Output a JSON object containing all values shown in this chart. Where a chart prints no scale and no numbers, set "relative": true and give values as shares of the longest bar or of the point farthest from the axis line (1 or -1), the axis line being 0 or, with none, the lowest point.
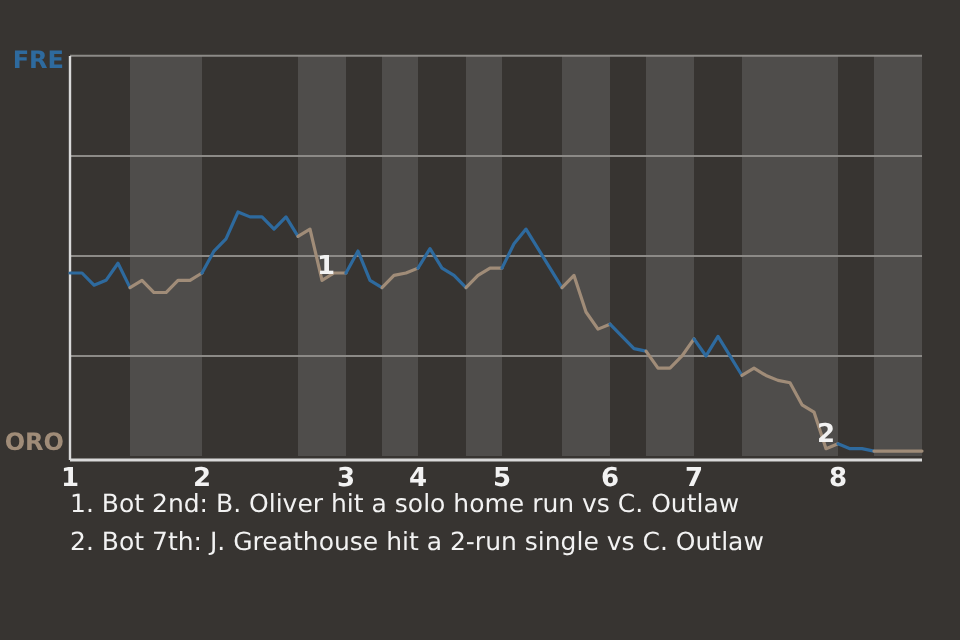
{
  "chart_data": {
    "type": "line",
    "relative": true,
    "ref_lines": [
      {
        "axis": "y",
        "value": 0.41,
        "color": "#8c8a87"
      },
      {
        "axis": "y",
        "value": 0.82,
        "color": "#8c8a87"
      },
      {
        "axis": "y",
        "value": 1.23,
        "color": "#8c8a87"
      },
      {
        "axis": "y",
        "value": 1.64,
        "color": "#8c8a87"
      }
    ],
    "categories": [
      "1",
      null,
      null,
      null,
      null,
      null,
      null,
      null,
      null,
      null,
      null,
      "2",
      null,
      null,
      null,
      null,
      null,
      null,
      null,
      null,
      null,
      null,
      null,
      "3",
      null,
      null,
      null,
      null,
      null,
      "4",
      null,
      null,
      null,
      null,
      null,
      null,
      "5",
      null,
      null,
      null,
      null,
      null,
      null,
      null,
      null,
      "6",
      null,
      null,
      null,
      null,
      null,
      null,
      "7",
      null,
      null,
      null,
      null,
      null,
      null,
      null,
      null,
      null,
      null,
      null,
      "8",
      null,
      null,
      null,
      null,
      null,
      null,
      null
    ],
    "series": [
      {
        "name": "FRE",
        "color": "#2e6a9e",
        "values": [
          0.75,
          0.75,
          0.7,
          0.72,
          0.79,
          0.69,
          null,
          null,
          null,
          null,
          null,
          null,
          null,
          null,
          null,
          null,
          null,
          null,
          null,
          null,
          null,
          null,
          null,
          null,
          null,
          null,
          null,
          null,
          null,
          null,
          null,
          null,
          null,
          null,
          null,
          null,
          null,
          null,
          null,
          null,
          null,
          null,
          null,
          null,
          null,
          null,
          null,
          null,
          null,
          null,
          null,
          null,
          null,
          null,
          null,
          null,
          null,
          null,
          null,
          null,
          null,
          null,
          null,
          null,
          null,
          null,
          null,
          null,
          null,
          null,
          null,
          null
        ]
      },
      {
        "name": "ORO",
        "color": "#a08c78",
        "values": [
          null,
          null,
          null,
          null,
          null,
          0.69,
          0.72,
          0.67,
          0.67,
          0.72,
          0.72,
          0.75,
          null,
          null,
          null,
          null,
          null,
          null,
          null,
          null,
          null,
          null,
          null,
          null,
          null,
          null,
          null,
          null,
          null,
          null,
          null,
          null,
          null,
          null,
          null,
          null,
          null,
          null,
          null,
          null,
          null,
          null,
          null,
          null,
          null,
          null,
          null,
          null,
          null,
          null,
          null,
          null,
          null,
          null,
          null,
          null,
          null,
          null,
          null,
          null,
          null,
          null,
          null,
          null,
          null,
          null,
          null,
          null,
          null,
          null,
          null,
          null
        ]
      },
      {
        "color": "#2e6a9e",
        "values": [
          null,
          null,
          null,
          null,
          null,
          null,
          null,
          null,
          null,
          null,
          null,
          0.75,
          0.84,
          0.89,
          1,
          0.98,
          0.98,
          0.93,
          0.98,
          0.9,
          null,
          null,
          null,
          null,
          null,
          null,
          null,
          null,
          null,
          null,
          null,
          null,
          null,
          null,
          null,
          null,
          null,
          null,
          null,
          null,
          null,
          null,
          null,
          null,
          null,
          null,
          null,
          null,
          null,
          null,
          null,
          null,
          null,
          null,
          null,
          null,
          null,
          null,
          null,
          null,
          null,
          null,
          null,
          null,
          null,
          null,
          null,
          null,
          null,
          null,
          null,
          null
        ]
      },
      {
        "color": "#a08c78",
        "values": [
          null,
          null,
          null,
          null,
          null,
          null,
          null,
          null,
          null,
          null,
          null,
          null,
          null,
          null,
          null,
          null,
          null,
          null,
          null,
          0.9,
          0.93,
          0.72,
          0.75,
          0.75,
          null,
          null,
          null,
          null,
          null,
          null,
          null,
          null,
          null,
          null,
          null,
          null,
          null,
          null,
          null,
          null,
          null,
          null,
          null,
          null,
          null,
          null,
          null,
          null,
          null,
          null,
          null,
          null,
          null,
          null,
          null,
          null,
          null,
          null,
          null,
          null,
          null,
          null,
          null,
          null,
          null,
          null,
          null,
          null,
          null,
          null,
          null,
          null
        ]
      },
      {
        "color": "#2e6a9e",
        "values": [
          null,
          null,
          null,
          null,
          null,
          null,
          null,
          null,
          null,
          null,
          null,
          null,
          null,
          null,
          null,
          null,
          null,
          null,
          null,
          null,
          null,
          null,
          null,
          0.75,
          0.84,
          0.72,
          0.69,
          null,
          null,
          null,
          null,
          null,
          null,
          null,
          null,
          null,
          null,
          null,
          null,
          null,
          null,
          null,
          null,
          null,
          null,
          null,
          null,
          null,
          null,
          null,
          null,
          null,
          null,
          null,
          null,
          null,
          null,
          null,
          null,
          null,
          null,
          null,
          null,
          null,
          null,
          null,
          null,
          null,
          null,
          null,
          null,
          null
        ]
      },
      {
        "color": "#a08c78",
        "values": [
          null,
          null,
          null,
          null,
          null,
          null,
          null,
          null,
          null,
          null,
          null,
          null,
          null,
          null,
          null,
          null,
          null,
          null,
          null,
          null,
          null,
          null,
          null,
          null,
          null,
          null,
          0.69,
          0.74,
          0.75,
          0.77,
          null,
          null,
          null,
          null,
          null,
          null,
          null,
          null,
          null,
          null,
          null,
          null,
          null,
          null,
          null,
          null,
          null,
          null,
          null,
          null,
          null,
          null,
          null,
          null,
          null,
          null,
          null,
          null,
          null,
          null,
          null,
          null,
          null,
          null,
          null,
          null,
          null,
          null,
          null,
          null,
          null,
          null
        ]
      },
      {
        "color": "#2e6a9e",
        "values": [
          null,
          null,
          null,
          null,
          null,
          null,
          null,
          null,
          null,
          null,
          null,
          null,
          null,
          null,
          null,
          null,
          null,
          null,
          null,
          null,
          null,
          null,
          null,
          null,
          null,
          null,
          null,
          null,
          null,
          0.77,
          0.85,
          0.77,
          0.74,
          0.69,
          null,
          null,
          null,
          null,
          null,
          null,
          null,
          null,
          null,
          null,
          null,
          null,
          null,
          null,
          null,
          null,
          null,
          null,
          null,
          null,
          null,
          null,
          null,
          null,
          null,
          null,
          null,
          null,
          null,
          null,
          null,
          null,
          null,
          null,
          null,
          null,
          null,
          null
        ]
      },
      {
        "color": "#a08c78",
        "values": [
          null,
          null,
          null,
          null,
          null,
          null,
          null,
          null,
          null,
          null,
          null,
          null,
          null,
          null,
          null,
          null,
          null,
          null,
          null,
          null,
          null,
          null,
          null,
          null,
          null,
          null,
          null,
          null,
          null,
          null,
          null,
          null,
          null,
          0.69,
          0.74,
          0.77,
          0.77,
          null,
          null,
          null,
          null,
          null,
          null,
          null,
          null,
          null,
          null,
          null,
          null,
          null,
          null,
          null,
          null,
          null,
          null,
          null,
          null,
          null,
          null,
          null,
          null,
          null,
          null,
          null,
          null,
          null,
          null,
          null,
          null,
          null,
          null,
          null
        ]
      },
      {
        "color": "#2e6a9e",
        "values": [
          null,
          null,
          null,
          null,
          null,
          null,
          null,
          null,
          null,
          null,
          null,
          null,
          null,
          null,
          null,
          null,
          null,
          null,
          null,
          null,
          null,
          null,
          null,
          null,
          null,
          null,
          null,
          null,
          null,
          null,
          null,
          null,
          null,
          null,
          null,
          null,
          0.77,
          0.87,
          0.93,
          0.85,
          0.77,
          0.69,
          null,
          null,
          null,
          null,
          null,
          null,
          null,
          null,
          null,
          null,
          null,
          null,
          null,
          null,
          null,
          null,
          null,
          null,
          null,
          null,
          null,
          null,
          null,
          null,
          null,
          null,
          null,
          null,
          null,
          null
        ]
      },
      {
        "color": "#a08c78",
        "values": [
          null,
          null,
          null,
          null,
          null,
          null,
          null,
          null,
          null,
          null,
          null,
          null,
          null,
          null,
          null,
          null,
          null,
          null,
          null,
          null,
          null,
          null,
          null,
          null,
          null,
          null,
          null,
          null,
          null,
          null,
          null,
          null,
          null,
          null,
          null,
          null,
          null,
          null,
          null,
          null,
          null,
          0.69,
          0.74,
          0.59,
          0.52,
          0.54,
          null,
          null,
          null,
          null,
          null,
          null,
          null,
          null,
          null,
          null,
          null,
          null,
          null,
          null,
          null,
          null,
          null,
          null,
          null,
          null,
          null,
          null,
          null,
          null,
          null,
          null
        ]
      },
      {
        "color": "#2e6a9e",
        "values": [
          null,
          null,
          null,
          null,
          null,
          null,
          null,
          null,
          null,
          null,
          null,
          null,
          null,
          null,
          null,
          null,
          null,
          null,
          null,
          null,
          null,
          null,
          null,
          null,
          null,
          null,
          null,
          null,
          null,
          null,
          null,
          null,
          null,
          null,
          null,
          null,
          null,
          null,
          null,
          null,
          null,
          null,
          null,
          null,
          null,
          0.54,
          0.49,
          0.44,
          0.43,
          null,
          null,
          null,
          null,
          null,
          null,
          null,
          null,
          null,
          null,
          null,
          null,
          null,
          null,
          null,
          null,
          null,
          null,
          null,
          null,
          null,
          null,
          null
        ]
      },
      {
        "color": "#a08c78",
        "values": [
          null,
          null,
          null,
          null,
          null,
          null,
          null,
          null,
          null,
          null,
          null,
          null,
          null,
          null,
          null,
          null,
          null,
          null,
          null,
          null,
          null,
          null,
          null,
          null,
          null,
          null,
          null,
          null,
          null,
          null,
          null,
          null,
          null,
          null,
          null,
          null,
          null,
          null,
          null,
          null,
          null,
          null,
          null,
          null,
          null,
          null,
          null,
          null,
          0.43,
          0.36,
          0.36,
          0.41,
          0.48,
          null,
          null,
          null,
          null,
          null,
          null,
          null,
          null,
          null,
          null,
          null,
          null,
          null,
          null,
          null,
          null,
          null,
          null,
          null
        ]
      },
      {
        "color": "#2e6a9e",
        "values": [
          null,
          null,
          null,
          null,
          null,
          null,
          null,
          null,
          null,
          null,
          null,
          null,
          null,
          null,
          null,
          null,
          null,
          null,
          null,
          null,
          null,
          null,
          null,
          null,
          null,
          null,
          null,
          null,
          null,
          null,
          null,
          null,
          null,
          null,
          null,
          null,
          null,
          null,
          null,
          null,
          null,
          null,
          null,
          null,
          null,
          null,
          null,
          null,
          null,
          null,
          null,
          null,
          0.48,
          0.41,
          0.49,
          0.41,
          0.33,
          null,
          null,
          null,
          null,
          null,
          null,
          null,
          null,
          null,
          null,
          null,
          null,
          null,
          null,
          null
        ]
      },
      {
        "color": "#a08c78",
        "values": [
          null,
          null,
          null,
          null,
          null,
          null,
          null,
          null,
          null,
          null,
          null,
          null,
          null,
          null,
          null,
          null,
          null,
          null,
          null,
          null,
          null,
          null,
          null,
          null,
          null,
          null,
          null,
          null,
          null,
          null,
          null,
          null,
          null,
          null,
          null,
          null,
          null,
          null,
          null,
          null,
          null,
          null,
          null,
          null,
          null,
          null,
          null,
          null,
          null,
          null,
          null,
          null,
          null,
          null,
          null,
          null,
          0.33,
          0.36,
          0.33,
          0.31,
          0.3,
          0.21,
          0.18,
          0.03,
          0.05,
          null,
          null,
          null,
          null,
          null,
          null,
          null
        ]
      },
      {
        "color": "#2e6a9e",
        "values": [
          null,
          null,
          null,
          null,
          null,
          null,
          null,
          null,
          null,
          null,
          null,
          null,
          null,
          null,
          null,
          null,
          null,
          null,
          null,
          null,
          null,
          null,
          null,
          null,
          null,
          null,
          null,
          null,
          null,
          null,
          null,
          null,
          null,
          null,
          null,
          null,
          null,
          null,
          null,
          null,
          null,
          null,
          null,
          null,
          null,
          null,
          null,
          null,
          null,
          null,
          null,
          null,
          null,
          null,
          null,
          null,
          null,
          null,
          null,
          null,
          null,
          null,
          null,
          null,
          0.05,
          0.03,
          0.03,
          0.02,
          null,
          null,
          null,
          null
        ]
      },
      {
        "color": "#a08c78",
        "values": [
          null,
          null,
          null,
          null,
          null,
          null,
          null,
          null,
          null,
          null,
          null,
          null,
          null,
          null,
          null,
          null,
          null,
          null,
          null,
          null,
          null,
          null,
          null,
          null,
          null,
          null,
          null,
          null,
          null,
          null,
          null,
          null,
          null,
          null,
          null,
          null,
          null,
          null,
          null,
          null,
          null,
          null,
          null,
          null,
          null,
          null,
          null,
          null,
          null,
          null,
          null,
          null,
          null,
          null,
          null,
          null,
          null,
          null,
          null,
          null,
          null,
          null,
          null,
          null,
          null,
          null,
          null,
          0.02,
          0.02,
          0.02,
          0.02,
          0.02
        ]
      }
    ],
    "annotations": [
      "1",
      "2",
      "1. Bot 2nd: B. Oliver hit a solo home run vs C. Outlaw",
      "2. Bot 7th: J. Greathouse hit a 2-run single vs C. Outlaw"
    ]
  }
}
